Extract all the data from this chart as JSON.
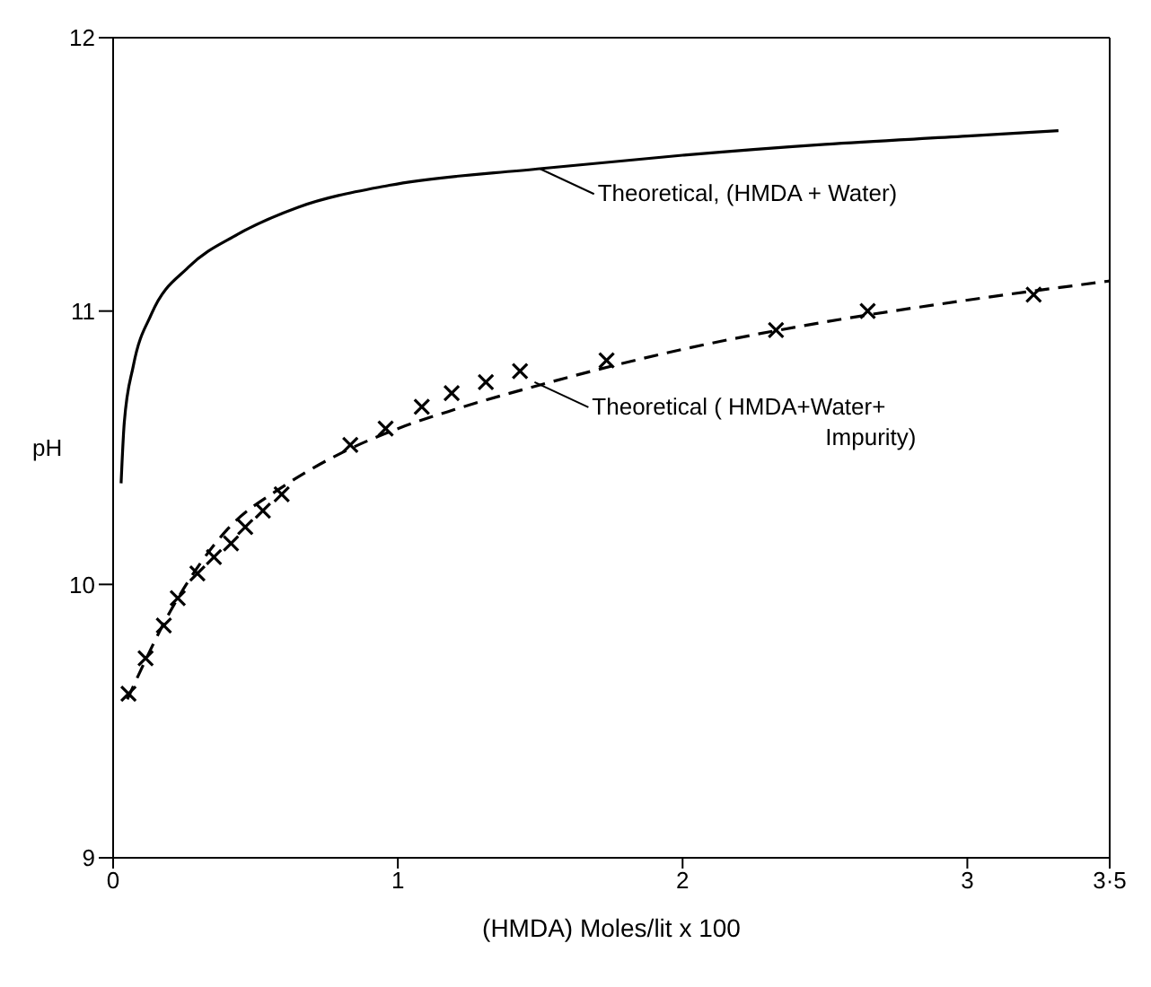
{
  "chart_data": {
    "type": "line",
    "xlabel": "(HMDA) Moles/lit x 100",
    "ylabel": "pH",
    "xlim": [
      0,
      3.5
    ],
    "xticks": [
      0,
      1,
      2,
      3,
      {
        "value": 3.5,
        "label": "3·5"
      }
    ],
    "ylim": [
      9,
      12
    ],
    "yticks": [
      9,
      10,
      11,
      12
    ],
    "series": [
      {
        "color": "#000000",
        "line_style": "solid",
        "marker": "none",
        "x": [
          0.028,
          0.039,
          0.071,
          0.135,
          0.264,
          0.436,
          0.65,
          0.97,
          1.49,
          2.0,
          2.5,
          3.0,
          3.32
        ],
        "values": [
          10.37,
          10.59,
          10.8,
          10.99,
          11.16,
          11.28,
          11.38,
          11.46,
          11.52,
          11.57,
          11.61,
          11.64,
          11.66
        ]
      },
      {
        "color": "#000000",
        "line_style": "dashed",
        "marker": "none",
        "x": [
          0.05,
          0.2,
          0.4,
          0.6,
          0.8,
          1.0,
          1.2,
          1.5,
          2.0,
          2.5,
          3.0,
          3.5
        ],
        "values": [
          9.58,
          9.9,
          10.2,
          10.36,
          10.48,
          10.57,
          10.64,
          10.73,
          10.86,
          10.96,
          11.04,
          11.11
        ]
      },
      {
        "type": "scatter",
        "color": "#000000",
        "marker": "cross",
        "x": [
          0.054,
          0.114,
          0.178,
          0.227,
          0.296,
          0.354,
          0.414,
          0.464,
          0.526,
          0.592,
          0.833,
          0.957,
          1.084,
          1.189,
          1.309,
          1.429,
          1.733,
          2.328,
          2.65,
          3.233
        ],
        "values": [
          9.6,
          9.73,
          9.85,
          9.95,
          10.04,
          10.1,
          10.15,
          10.21,
          10.27,
          10.33,
          10.51,
          10.57,
          10.65,
          10.7,
          10.74,
          10.78,
          10.82,
          10.93,
          11.0,
          11.06
        ]
      }
    ],
    "annotations": [
      {
        "text": "Theoretical, (HMDA + Water)",
        "x": 1.5,
        "y": 11.52
      },
      {
        "text": "Theoretical ( HMDA+Water+ Impurity)",
        "x": 1.48,
        "y": 10.74
      }
    ]
  }
}
